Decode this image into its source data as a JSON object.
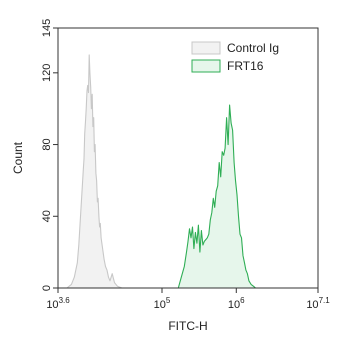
{
  "chart_data": {
    "type": "area",
    "xlabel": "FITC-H",
    "ylabel": "Count",
    "x_scale": "log10",
    "xlim": [
      3.6,
      7.1
    ],
    "ylim": [
      0,
      145
    ],
    "grid": false,
    "legend_position": "top-right",
    "x_ticks": [
      {
        "exp": 3.6,
        "base": "10",
        "sup": "3.6"
      },
      {
        "exp": 5,
        "base": "10",
        "sup": "5"
      },
      {
        "exp": 6,
        "base": "10",
        "sup": "6"
      },
      {
        "exp": 7.1,
        "base": "10",
        "sup": "7.1"
      }
    ],
    "y_ticks": [
      {
        "value": 0,
        "label": "0"
      },
      {
        "value": 40,
        "label": "40"
      },
      {
        "value": 80,
        "label": "80"
      },
      {
        "value": 120,
        "label": "120"
      },
      {
        "value": 145,
        "label": "145"
      }
    ],
    "series": [
      {
        "name": "Control Ig",
        "color": "#c8c8c8",
        "fill": "#f2f2f2",
        "x": [
          3.72,
          3.78,
          3.82,
          3.86,
          3.88,
          3.9,
          3.92,
          3.94,
          3.95,
          3.96,
          3.97,
          3.98,
          3.99,
          4.0,
          4.01,
          4.02,
          4.03,
          4.04,
          4.05,
          4.06,
          4.07,
          4.08,
          4.09,
          4.1,
          4.11,
          4.12,
          4.13,
          4.14,
          4.15,
          4.16,
          4.17,
          4.18,
          4.2,
          4.22,
          4.24,
          4.26,
          4.28,
          4.3,
          4.33,
          4.36,
          4.4,
          4.46
        ],
        "y": [
          0,
          2,
          6,
          14,
          24,
          38,
          52,
          66,
          72,
          86,
          93,
          100,
          110,
          113,
          109,
          130,
          120,
          112,
          100,
          108,
          90,
          95,
          76,
          80,
          64,
          60,
          48,
          50,
          40,
          34,
          36,
          28,
          22,
          16,
          12,
          10,
          6,
          4,
          8,
          3,
          1,
          0
        ]
      },
      {
        "name": "FRT16",
        "color": "#2fae55",
        "fill": "#e6f6eb",
        "x": [
          5.22,
          5.26,
          5.3,
          5.33,
          5.35,
          5.37,
          5.39,
          5.41,
          5.43,
          5.45,
          5.47,
          5.49,
          5.51,
          5.53,
          5.55,
          5.57,
          5.59,
          5.61,
          5.63,
          5.65,
          5.67,
          5.69,
          5.71,
          5.73,
          5.75,
          5.77,
          5.79,
          5.81,
          5.83,
          5.85,
          5.87,
          5.89,
          5.91,
          5.93,
          5.95,
          5.97,
          5.99,
          6.01,
          6.03,
          6.05,
          6.07,
          6.09,
          6.11,
          6.13,
          6.15,
          6.17,
          6.2,
          6.23,
          6.26
        ],
        "y": [
          0,
          6,
          12,
          20,
          26,
          33,
          28,
          34,
          22,
          31,
          25,
          35,
          20,
          32,
          24,
          26,
          27,
          28,
          30,
          38,
          42,
          50,
          45,
          54,
          57,
          70,
          62,
          76,
          74,
          78,
          95,
          80,
          102,
          92,
          88,
          70,
          60,
          52,
          40,
          30,
          28,
          18,
          14,
          10,
          8,
          4,
          2,
          1,
          0
        ]
      }
    ]
  }
}
